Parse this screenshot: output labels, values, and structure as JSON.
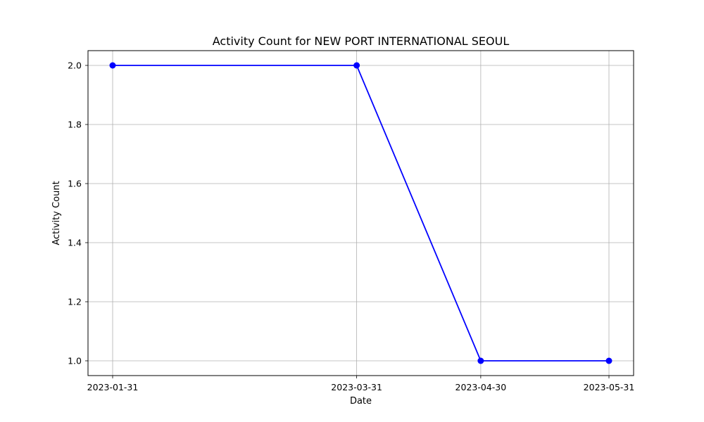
{
  "chart_data": {
    "type": "line",
    "title": "Activity Count for NEW PORT INTERNATIONAL SEOUL",
    "xlabel": "Date",
    "ylabel": "Activity Count",
    "x": [
      "2023-01-31",
      "2023-03-31",
      "2023-04-30",
      "2023-05-31"
    ],
    "series": [
      {
        "values": [
          2.0,
          2.0,
          1.0,
          1.0
        ],
        "color": "#0000ff",
        "marker": "circle"
      }
    ],
    "ylim": [
      0.95,
      2.05
    ],
    "yticks": [
      "1.0",
      "1.2",
      "1.4",
      "1.6",
      "1.8",
      "2.0"
    ],
    "grid": true,
    "legend": "none"
  }
}
